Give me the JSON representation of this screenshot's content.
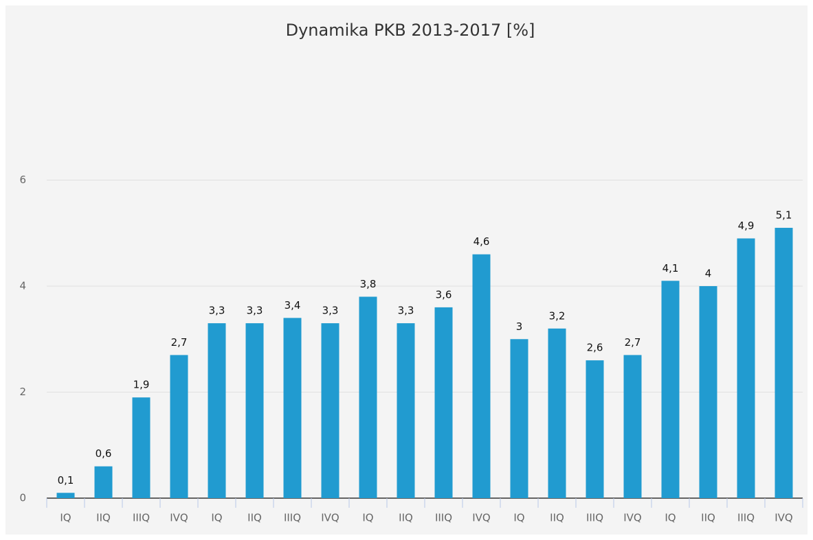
{
  "chart_data": {
    "type": "bar",
    "title": "Dynamika PKB 2013-2017 [%]",
    "categories": [
      "IQ",
      "IIQ",
      "IIIQ",
      "IVQ",
      "IQ",
      "IIQ",
      "IIIQ",
      "IVQ",
      "IQ",
      "IIQ",
      "IIIQ",
      "IVQ",
      "IQ",
      "IIQ",
      "IIIQ",
      "IVQ",
      "IQ",
      "IIQ",
      "IIIQ",
      "IVQ"
    ],
    "values": [
      0.1,
      0.6,
      1.9,
      2.7,
      3.3,
      3.3,
      3.4,
      3.3,
      3.8,
      3.3,
      3.6,
      4.6,
      3,
      3.2,
      2.6,
      2.7,
      4.1,
      4,
      4.9,
      5.1
    ],
    "value_labels": [
      "0,1",
      "0,6",
      "1,9",
      "2,7",
      "3,3",
      "3,3",
      "3,4",
      "3,3",
      "3,8",
      "3,3",
      "3,6",
      "4,6",
      "3",
      "3,2",
      "2,6",
      "2,7",
      "4,1",
      "4",
      "4,9",
      "5,1"
    ],
    "color": "#219bd0",
    "ylim": [
      0,
      8
    ],
    "yticks": [
      0,
      2,
      4,
      6
    ],
    "grid": true
  }
}
